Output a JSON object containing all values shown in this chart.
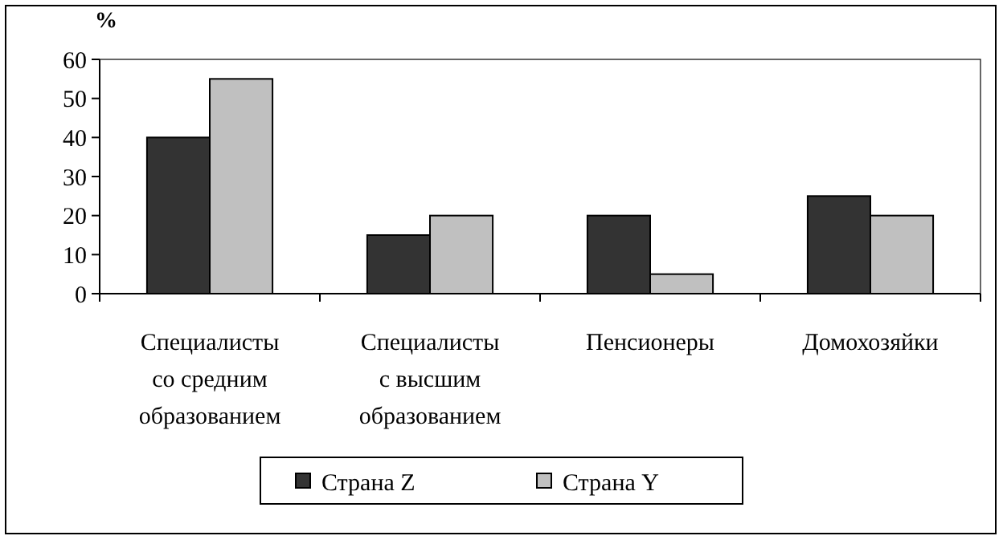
{
  "chart_data": {
    "type": "bar",
    "ylabel": "%",
    "categories": [
      "Специалисты со средним образованием",
      "Специалисты с высшим образованием",
      "Пенсионеры",
      "Домохозяйки"
    ],
    "series": [
      {
        "name": "Страна Z",
        "color": "#333333",
        "values": [
          40,
          15,
          20,
          25
        ]
      },
      {
        "name": "Страна Y",
        "color": "#c0c0c0",
        "values": [
          55,
          20,
          5,
          20
        ]
      }
    ],
    "ylim": [
      0,
      60
    ],
    "yticks": [
      0,
      10,
      20,
      30,
      40,
      50,
      60
    ],
    "grid": false,
    "legend": "bottom"
  }
}
